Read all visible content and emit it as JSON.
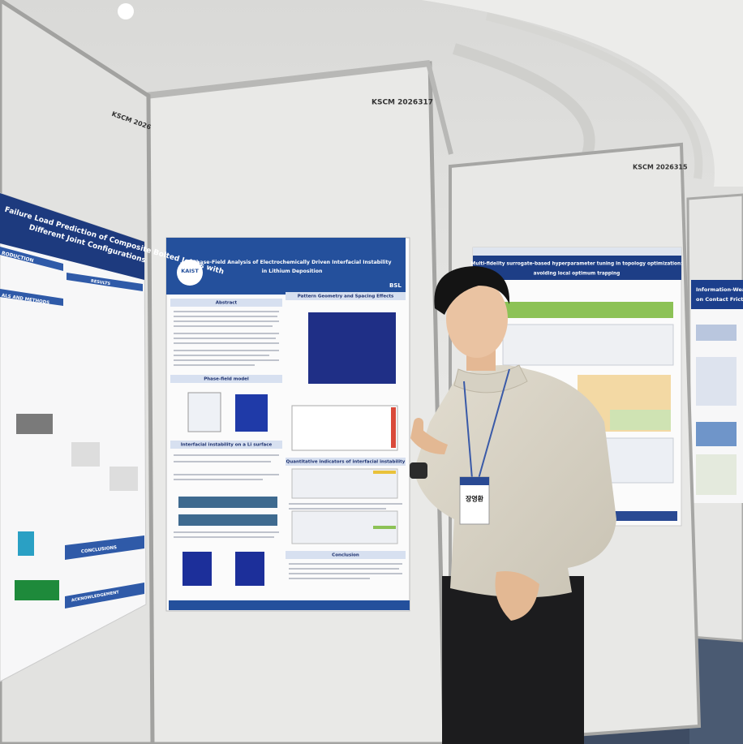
{
  "booth_labels": [
    "KSCM 2026",
    "KSCM 2026317",
    "KSCM 2026315"
  ],
  "left_poster": {
    "title_lines": [
      "Failure Load Prediction of Composite Bolted Joints with",
      "Different Joint Configurations"
    ],
    "sections": [
      "RODUCTION",
      "RESULTS",
      "ALS AND METHODS",
      "CONCLUSIONS",
      "ACKNOWLEDGEMENT"
    ]
  },
  "center_poster": {
    "logo": "KAIST",
    "lab": "BSL",
    "title_lines": [
      "Phase-Field Analysis of Electrochemically Driven Interfacial Instability",
      "in Lithium Deposition"
    ],
    "left_sections": [
      "Abstract",
      "Phase-field model",
      "Interfacial instability on a Li surface"
    ],
    "right_sections": [
      "Pattern Geometry and Spacing Effects",
      "Quantitative indicators of interfacial instability",
      "Conclusion"
    ]
  },
  "right_poster": {
    "title_lines": [
      "Multi-fidelity surrogate-based hyperparameter tuning in topology optimization:",
      "avoiding local optimum trapping"
    ]
  },
  "far_right_poster": {
    "title_lines": [
      "Information-Wear Analys",
      "on Contact Friction an"
    ]
  },
  "name_badge": "장영환"
}
